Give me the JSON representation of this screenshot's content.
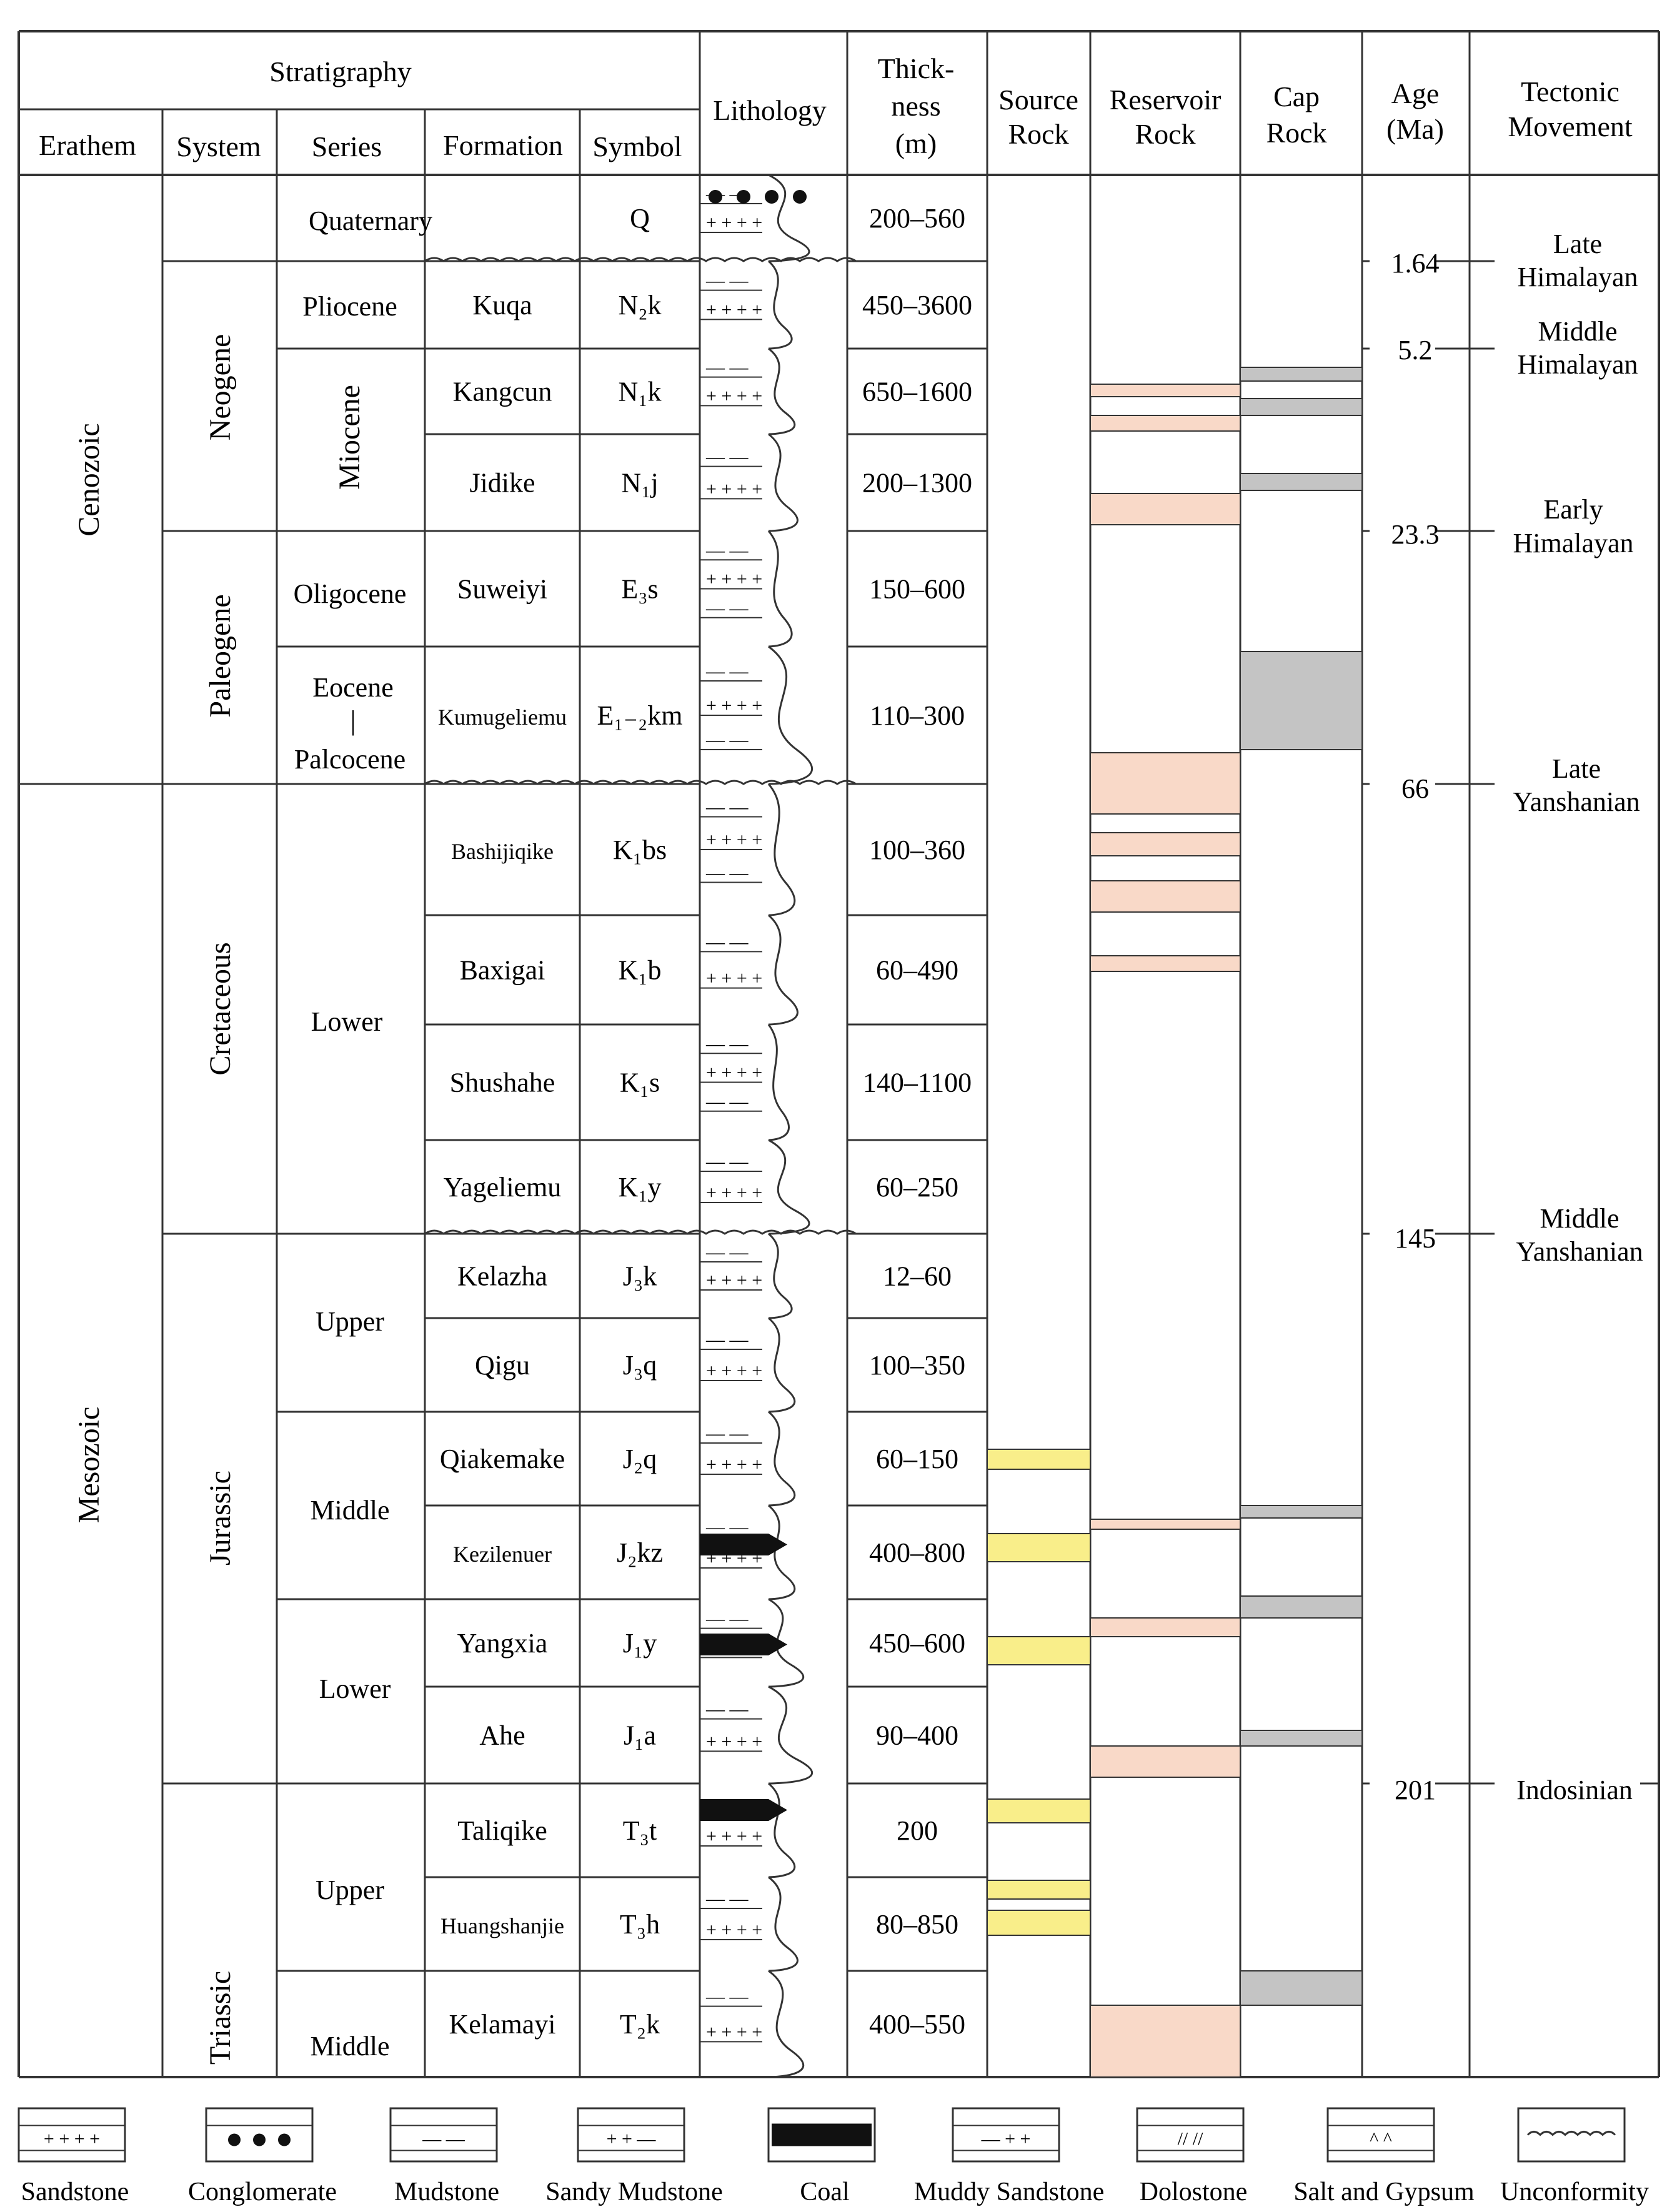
{
  "headers": {
    "stratigraphy": "Stratigraphy",
    "erathem": "Erathem",
    "system": "System",
    "series": "Series",
    "formation": "Formation",
    "symbol": "Symbol",
    "lithology": "Lithology",
    "thickness": [
      "Thick-",
      "ness",
      "(m)"
    ],
    "source_rock": [
      "Source",
      "Rock"
    ],
    "reservoir_rock": [
      "Reservoir",
      "Rock"
    ],
    "cap_rock": [
      "Cap",
      "Rock"
    ],
    "age": [
      "Age",
      "(Ma)"
    ],
    "tectonic": [
      "Tectonic",
      "Movement"
    ]
  },
  "erathems": [
    "Cenozoic",
    "Mesozoic"
  ],
  "systems": [
    "Neogene",
    "Paleogene",
    "Cretaceous",
    "Jurassic",
    "Triassic"
  ],
  "series": {
    "quaternary": "Quaternary",
    "pliocene": "Pliocene",
    "miocene": "Miocene",
    "oligocene": "Oligocene",
    "eocene": "Eocene",
    "bar": "|",
    "paleocene": "Palcocene",
    "cret_lower": "Lower",
    "jur_upper": "Upper",
    "jur_middle": "Middle",
    "jur_lower": "Lower",
    "tri_upper": "Upper",
    "tri_middle": "Middle"
  },
  "formations": [
    {
      "name": "",
      "sym": "Q",
      "thick": "200–560"
    },
    {
      "name": "Kuqa",
      "sym": "N₂k",
      "thick": "450–3600"
    },
    {
      "name": "Kangcun",
      "sym": "N₁k",
      "thick": "650–1600"
    },
    {
      "name": "Jidike",
      "sym": "N₁j",
      "thick": "200–1300"
    },
    {
      "name": "Suweiyi",
      "sym": "E₃s",
      "thick": "150–600"
    },
    {
      "name": "Kumugeliemu",
      "sym": "E₁₋₂km",
      "thick": "110–300"
    },
    {
      "name": "Bashijiqike",
      "sym": "K₁bs",
      "thick": "100–360"
    },
    {
      "name": "Baxigai",
      "sym": "K₁b",
      "thick": "60–490"
    },
    {
      "name": "Shushahe",
      "sym": "K₁s",
      "thick": "140–1100"
    },
    {
      "name": "Yageliemu",
      "sym": "K₁y",
      "thick": "60–250"
    },
    {
      "name": "Kelazha",
      "sym": "J₃k",
      "thick": "12–60"
    },
    {
      "name": "Qigu",
      "sym": "J₃q",
      "thick": "100–350"
    },
    {
      "name": "Qiakemake",
      "sym": "J₂q",
      "thick": "60–150"
    },
    {
      "name": "Kezilenuer",
      "sym": "J₂kz",
      "thick": "400–800"
    },
    {
      "name": "Yangxia",
      "sym": "J₁y",
      "thick": "450–600"
    },
    {
      "name": "Ahe",
      "sym": "J₁a",
      "thick": "90–400"
    },
    {
      "name": "Taliqike",
      "sym": "T₃t",
      "thick": "200"
    },
    {
      "name": "Huangshanjie",
      "sym": "T₃h",
      "thick": "80–850"
    },
    {
      "name": "Kelamayi",
      "sym": "T₂k",
      "thick": "400–550"
    }
  ],
  "ages": [
    "1.64",
    "5.2",
    "23.3",
    "66",
    "145",
    "201"
  ],
  "tectonics": [
    [
      "Late",
      "Himalayan"
    ],
    [
      "Middle",
      "Himalayan"
    ],
    [
      "Early",
      "Himalayan"
    ],
    [
      "Late",
      "Yanshanian"
    ],
    [
      "Middle",
      "Yanshanian"
    ],
    [
      "Indosinian"
    ]
  ],
  "legend": [
    "Sandstone",
    "Conglomerate",
    "Mudstone",
    "Sandy Mudstone",
    "Coal",
    "Muddy Sandstone",
    "Dolostone",
    "Salt and Gypsum",
    "Unconformity"
  ],
  "colors": {
    "source": "#f9ee8a",
    "reservoir": "#f9d9c8",
    "cap": "#c4c4c4",
    "line": "#333333"
  }
}
